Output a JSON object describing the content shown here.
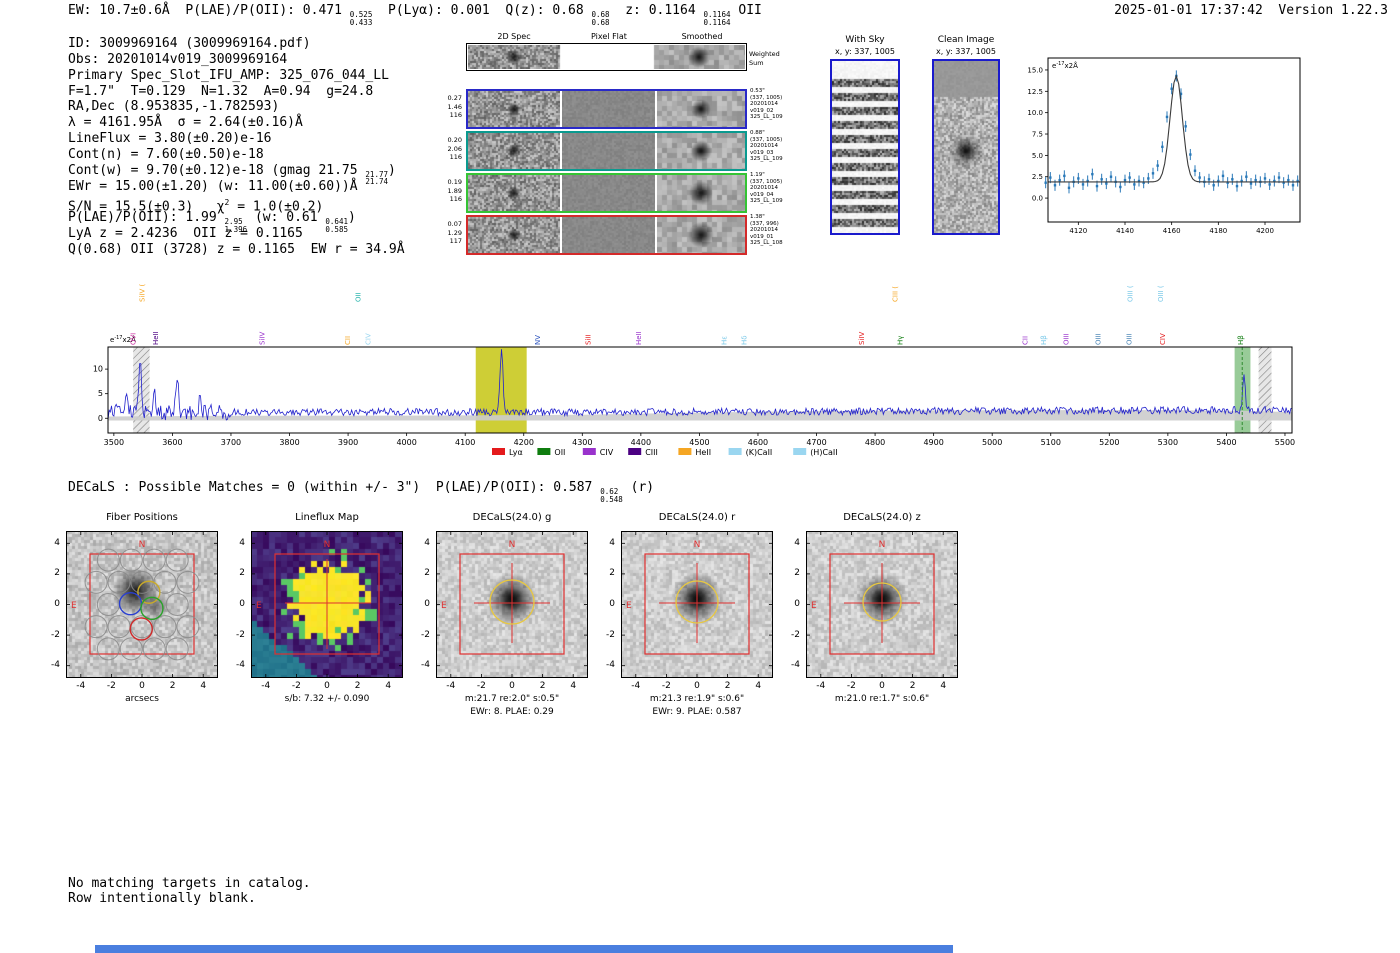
{
  "header": {
    "left_segments": [
      {
        "t": "EW: 10.7±0.6Å  P(LAE)/P(OII): 0.471 "
      },
      {
        "stack": [
          "0.525",
          "0.433"
        ]
      },
      {
        "t": "  P(Lyα): 0.001  Q(z): 0.68 "
      },
      {
        "stack": [
          "0.68",
          "0.68"
        ]
      },
      {
        "t": "  z: 0.1164 "
      },
      {
        "stack": [
          "0.1164",
          "0.1164"
        ]
      },
      {
        "t": " OII"
      }
    ],
    "right": "2025-01-01 17:37:42  Version 1.22.3"
  },
  "info_lines": [
    [
      {
        "t": "ID: 3009969164 (3009969164.pdf)"
      }
    ],
    [
      {
        "t": "Obs: 20201014v019_3009969164"
      }
    ],
    [
      {
        "t": "Primary Spec_Slot_IFU_AMP: 325_076_044_LL"
      }
    ],
    [
      {
        "t": "F=1.7\"  T=0.129  N=1.32  A=0.94  g=24.8"
      }
    ],
    [
      {
        "t": "RA,Dec (8.953835,-1.782593)"
      }
    ],
    [
      {
        "t": "λ = 4161.95Å  σ = 2.64(±0.16)Å"
      }
    ],
    [
      {
        "t": "LineFlux = 3.80(±0.20)e-16"
      }
    ],
    [
      {
        "t": "Cont(n) = 7.60(±0.50)e-18"
      }
    ],
    [
      {
        "t": "Cont(w) = 9.70(±0.12)e-18 (gmag 21.75 "
      },
      {
        "stack": [
          "21.77",
          "21.74"
        ]
      },
      {
        "t": ")"
      }
    ],
    [
      {
        "t": "EWr = 15.00(±1.20) (w: 11.00(±0.60))Å"
      }
    ],
    [
      {
        "t": "S/N = 15.5(±0.3)   χ"
      },
      {
        "sup": "2"
      },
      {
        "t": " = 1.0(±0.2)"
      }
    ],
    [
      {
        "t": "P(LAE)/P(OII): 1.99 "
      },
      {
        "stack": [
          "2.95",
          "1.396"
        ]
      },
      {
        "t": " (w: 0.61 "
      },
      {
        "stack": [
          "0.641",
          "0.585"
        ]
      },
      {
        "t": ")"
      }
    ],
    [
      {
        "t": "LyA z = 2.4236  OII z = 0.1165"
      }
    ],
    [
      {
        "t": "Q(0.68) OII (3728) z = 0.1165  EW r = 34.9Å"
      }
    ]
  ],
  "spec2d": {
    "col_titles": [
      "2D Spec",
      "Pixel Flat",
      "Smoothed"
    ],
    "weighted_sum_label": [
      "Weighted",
      "Sum"
    ],
    "rows": [
      {
        "border_color": "#2929c8",
        "left": [
          "0.27",
          "1.46",
          "116"
        ],
        "right": [
          "0.53\"",
          "(337, 1005)",
          "20201014",
          "v019_02",
          "325_LL_109"
        ]
      },
      {
        "border_color": "#0a9a8f",
        "left": [
          "0.20",
          "2.06",
          "116"
        ],
        "right": [
          "0.88\"",
          "(337, 1005)",
          "20201014",
          "v019_03",
          "325_LL_109"
        ]
      },
      {
        "border_color": "#35c435",
        "left": [
          "0.19",
          "1.89",
          "116"
        ],
        "right": [
          "1.19\"",
          "(337, 1005)",
          "20201014",
          "v019_04",
          "325_LL_109"
        ]
      },
      {
        "border_color": "#d42a2a",
        "left": [
          "0.07",
          "1.29",
          "117"
        ],
        "right": [
          "1.38\"",
          "(337, 996)",
          "20201014",
          "v019_01",
          "325_LL_108"
        ]
      }
    ]
  },
  "with_sky": {
    "title": "With Sky",
    "coords": "x, y: 337, 1005",
    "border_color": "#1a1acc"
  },
  "clean_image": {
    "title": "Clean Image",
    "coords": "x, y: 337, 1005",
    "border_color": "#1a1acc"
  },
  "chart_data": [
    {
      "id": "line_fit_zoom",
      "type": "scatter",
      "ylabel": "e-17x2Å",
      "ylabel_parts": [
        "e",
        "-17",
        "x2Å"
      ],
      "xlim": [
        4107,
        4215
      ],
      "ylim": [
        -2.8,
        16.4
      ],
      "xticks": [
        4120,
        4140,
        4160,
        4180,
        4200
      ],
      "yticks": [
        0.0,
        2.5,
        5.0,
        7.5,
        10.0,
        12.5,
        15.0
      ],
      "point_color": "#2878b8",
      "fit_color": "#3a3a3a",
      "yerr": 0.65,
      "x": [
        4106,
        4108,
        4110,
        4112,
        4114,
        4116,
        4118,
        4120,
        4122,
        4124,
        4126,
        4128,
        4130,
        4132,
        4134,
        4136,
        4138,
        4140,
        4142,
        4144,
        4146,
        4148,
        4150,
        4152,
        4154,
        4156,
        4158,
        4160,
        4162,
        4164,
        4166,
        4168,
        4170,
        4172,
        4174,
        4176,
        4178,
        4180,
        4182,
        4184,
        4186,
        4188,
        4190,
        4192,
        4194,
        4196,
        4198,
        4200,
        4202,
        4204,
        4206,
        4208,
        4210,
        4212,
        4214
      ],
      "y": [
        1.8,
        2.4,
        1.5,
        2.1,
        2.6,
        1.2,
        1.9,
        2.3,
        1.6,
        2.0,
        2.8,
        1.4,
        2.2,
        1.7,
        2.5,
        1.9,
        1.3,
        2.1,
        2.4,
        1.6,
        2.0,
        1.8,
        2.3,
        2.9,
        3.8,
        6.0,
        9.5,
        12.8,
        14.3,
        12.2,
        8.4,
        5.1,
        3.2,
        2.4,
        1.9,
        2.2,
        1.5,
        2.0,
        2.6,
        1.8,
        2.2,
        1.4,
        2.0,
        2.5,
        1.7,
        2.1,
        1.9,
        2.3,
        1.6,
        2.0,
        2.4,
        1.8,
        2.1,
        1.5,
        2.0
      ],
      "fit": {
        "center": 4161.95,
        "sigma": 2.64,
        "amplitude": 12.4,
        "baseline": 1.9
      }
    },
    {
      "id": "full_spectrum",
      "type": "line",
      "ylabel": "e-17x2Å",
      "ylabel_parts": [
        "e",
        "-17",
        "x2Å"
      ],
      "xlim": [
        3490,
        5512
      ],
      "ylim": [
        -3,
        14.5
      ],
      "xticks": [
        3500,
        3600,
        3700,
        3800,
        3900,
        4000,
        4100,
        4200,
        4300,
        4400,
        4500,
        4600,
        4700,
        4800,
        4900,
        5000,
        5100,
        5200,
        5300,
        5400,
        5500
      ],
      "yticks": [
        0,
        5,
        10
      ],
      "line_color": "#2121cc",
      "baseline": 1.25,
      "noise": 0.75,
      "noise_low": 1.7,
      "peaks": [
        {
          "x": 3521,
          "h": 4.5,
          "w": 2.5
        },
        {
          "x": 3545,
          "h": 11.3,
          "w": 2.2
        },
        {
          "x": 3570,
          "h": 3.5,
          "w": 2.0
        },
        {
          "x": 3608,
          "h": 6.5,
          "w": 2.2
        },
        {
          "x": 3648,
          "h": 3.2,
          "w": 2.0
        },
        {
          "x": 4162,
          "h": 12.2,
          "w": 2.6
        },
        {
          "x": 5430,
          "h": 7.6,
          "w": 2.2
        }
      ],
      "bands": [
        {
          "x0": 4118,
          "x1": 4205,
          "color": "#c9c920",
          "opacity": 0.9
        },
        {
          "x0": 5414,
          "x1": 5441,
          "color": "#44a044",
          "opacity": 0.55
        }
      ],
      "hatch_bands": [
        {
          "x0": 3533,
          "x1": 3561
        },
        {
          "x0": 5455,
          "x1": 5477
        }
      ],
      "dashed_lines": [
        {
          "x": 5427,
          "color": "#2e8b2e"
        }
      ],
      "line_labels": [
        {
          "label": "OVI",
          "wl": 3537,
          "color": "#cc2aa0",
          "row": 1
        },
        {
          "label": "SiIV (",
          "wl": 3552,
          "color": "#f5a623",
          "row": 2
        },
        {
          "label": "HeII",
          "wl": 3575,
          "color": "#4b0082",
          "row": 1
        },
        {
          "label": "SiIV",
          "wl": 3757,
          "color": "#9932cc",
          "row": 1
        },
        {
          "label": "CII",
          "wl": 3903,
          "color": "#f5a623",
          "row": 1
        },
        {
          "label": "OII",
          "wl": 3921,
          "color": "#20b2aa",
          "row": 2
        },
        {
          "label": "CIV",
          "wl": 3938,
          "color": "#9ad6f0",
          "row": 1
        },
        {
          "label": "NV",
          "wl": 4228,
          "color": "#2a52be",
          "row": 1
        },
        {
          "label": "SiII",
          "wl": 4314,
          "color": "#e41a1c",
          "row": 1
        },
        {
          "label": "HeII",
          "wl": 4400,
          "color": "#9932cc",
          "row": 1
        },
        {
          "label": "Hε",
          "wl": 4546,
          "color": "#79c8e8",
          "row": 1
        },
        {
          "label": "Hδ",
          "wl": 4580,
          "color": "#79c8e8",
          "row": 1
        },
        {
          "label": "SiIV",
          "wl": 4781,
          "color": "#e41a1c",
          "row": 1
        },
        {
          "label": "CIII (",
          "wl": 4838,
          "color": "#f5a623",
          "row": 2
        },
        {
          "label": "Hγ",
          "wl": 4847,
          "color": "#0f7d0f",
          "row": 1
        },
        {
          "label": "CII",
          "wl": 5060,
          "color": "#9932cc",
          "row": 1
        },
        {
          "label": "Hβ",
          "wl": 5092,
          "color": "#79c8e8",
          "row": 1
        },
        {
          "label": "OIII",
          "wl": 5130,
          "color": "#9932cc",
          "row": 1
        },
        {
          "label": "OIII",
          "wl": 5185,
          "color": "#4682b4",
          "row": 1
        },
        {
          "label": "OIII (",
          "wl": 5240,
          "color": "#79c8e8",
          "row": 2
        },
        {
          "label": "OIII",
          "wl": 5238,
          "color": "#4682b4",
          "row": 1
        },
        {
          "label": "CIV",
          "wl": 5295,
          "color": "#e41a1c",
          "row": 1
        },
        {
          "label": "OIII (",
          "wl": 5292,
          "color": "#79c8e8",
          "row": 2
        },
        {
          "label": "Hβ",
          "wl": 5428,
          "color": "#0f7d0f",
          "row": 1
        }
      ],
      "legend": [
        {
          "label": "Lyα",
          "color": "#e41a1c"
        },
        {
          "label": "OII",
          "color": "#0f7d0f"
        },
        {
          "label": "CIV",
          "color": "#9932cc"
        },
        {
          "label": "CIII",
          "color": "#4b0082"
        },
        {
          "label": "HeII",
          "color": "#f5a623"
        },
        {
          "label": "(K)CaII",
          "color": "#9ad6f0"
        },
        {
          "label": "(H)CaII",
          "color": "#9ad6f0"
        }
      ]
    }
  ],
  "decals_line_segments": [
    {
      "t": "DECaLS : Possible Matches = 0 (within +/- 3\")  P(LAE)/P(OII): 0.587 "
    },
    {
      "stack": [
        "0.62",
        "0.548"
      ]
    },
    {
      "t": " (r)"
    }
  ],
  "cutout_axes": {
    "yticks": [
      4,
      2,
      0,
      -2,
      -4
    ],
    "xticks": [
      -4,
      -2,
      0,
      2,
      4
    ]
  },
  "compass": {
    "north": "N",
    "east": "E"
  },
  "cutouts": [
    {
      "type": "fibers",
      "title": "Fiber Positions",
      "xlabel": "arcsecs"
    },
    {
      "type": "lineflux",
      "title": "Lineflux Map",
      "caption": "s/b: 7.32 +/- 0.090"
    },
    {
      "type": "decals",
      "title": "DECaLS(24.0) g",
      "caption": "m:21.7 re:2.0\" s:0.5\"",
      "caption2": "EWr: 8. PLAE: 0.29",
      "aperture_r": 22
    },
    {
      "type": "decals",
      "title": "DECaLS(24.0) r",
      "caption": "m:21.3 re:1.9\" s:0.6\"",
      "caption2": "EWr: 9. PLAE: 0.587",
      "aperture_r": 21
    },
    {
      "type": "decals",
      "title": "DECaLS(24.0) z",
      "caption": "m:21.0 re:1.7\" s:0.6\"",
      "aperture_r": 19
    }
  ],
  "footer_lines": [
    "No matching targets in catalog.",
    "Row intentionally blank."
  ],
  "ui": {
    "bottom_bar_color": "#4a7fdf",
    "accent_blue": "#1a1acc",
    "red_marker": "#e03030",
    "aperture_yellow": "#e8c840"
  }
}
